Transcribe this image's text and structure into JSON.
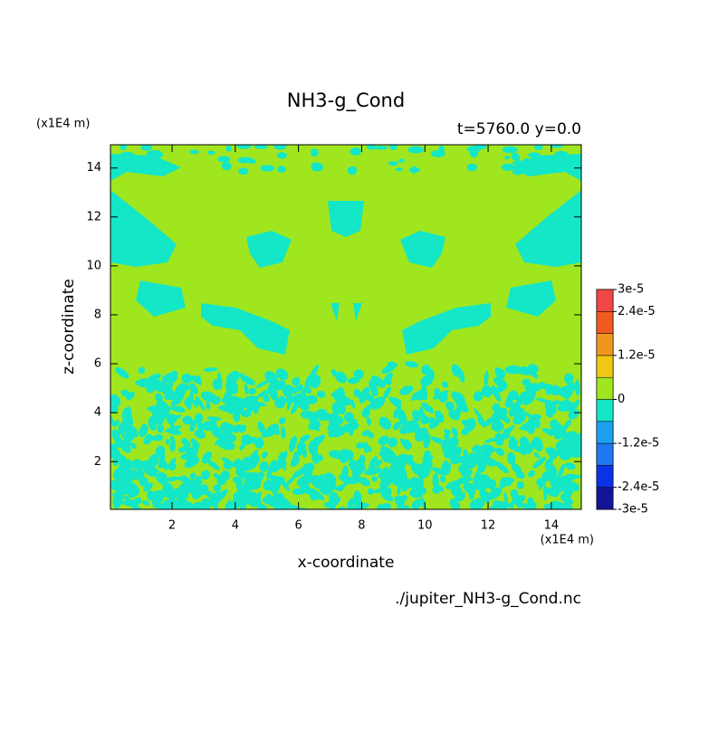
{
  "chart_data": {
    "type": "contour",
    "title": "NH3-g_Cond",
    "subtitle": "t=5760.0 y=0.0",
    "x_label": "x-coordinate",
    "y_label": "z-coordinate",
    "x_unit": "(x1E4 m)",
    "y_unit": "(x1E4 m)",
    "source": "./jupiter_NH3-g_Cond.nc",
    "xlim": [
      0.05,
      14.95
    ],
    "ylim": [
      0.05,
      14.95
    ],
    "xticks": [
      2,
      4,
      6,
      8,
      10,
      12,
      14
    ],
    "yticks": [
      2,
      4,
      6,
      8,
      10,
      12,
      14
    ],
    "levels": [
      -3e-05,
      -2.4e-05,
      -1.8e-05,
      -1.2e-05,
      -6e-06,
      0,
      6e-06,
      1.2e-05,
      1.8e-05,
      2.4e-05,
      3e-05
    ],
    "colors": [
      "#14149b",
      "#0a32e6",
      "#1e78f0",
      "#1ea0f0",
      "#14e6c8",
      "#a0e61e",
      "#f0c814",
      "#f0961e",
      "#f05a1e",
      "#f04646"
    ],
    "colorbar_ticks": [
      {
        "value": 3e-05,
        "label": "3e-5"
      },
      {
        "value": 2.4e-05,
        "label": "2.4e-5"
      },
      {
        "value": 1.2e-05,
        "label": "1.2e-5"
      },
      0,
      {
        "value": -1.2e-05,
        "label": "-1.2e-5"
      },
      {
        "value": -2.4e-05,
        "label": "-2.4e-5"
      },
      {
        "value": -3e-05,
        "label": "-3e-5"
      }
    ]
  }
}
